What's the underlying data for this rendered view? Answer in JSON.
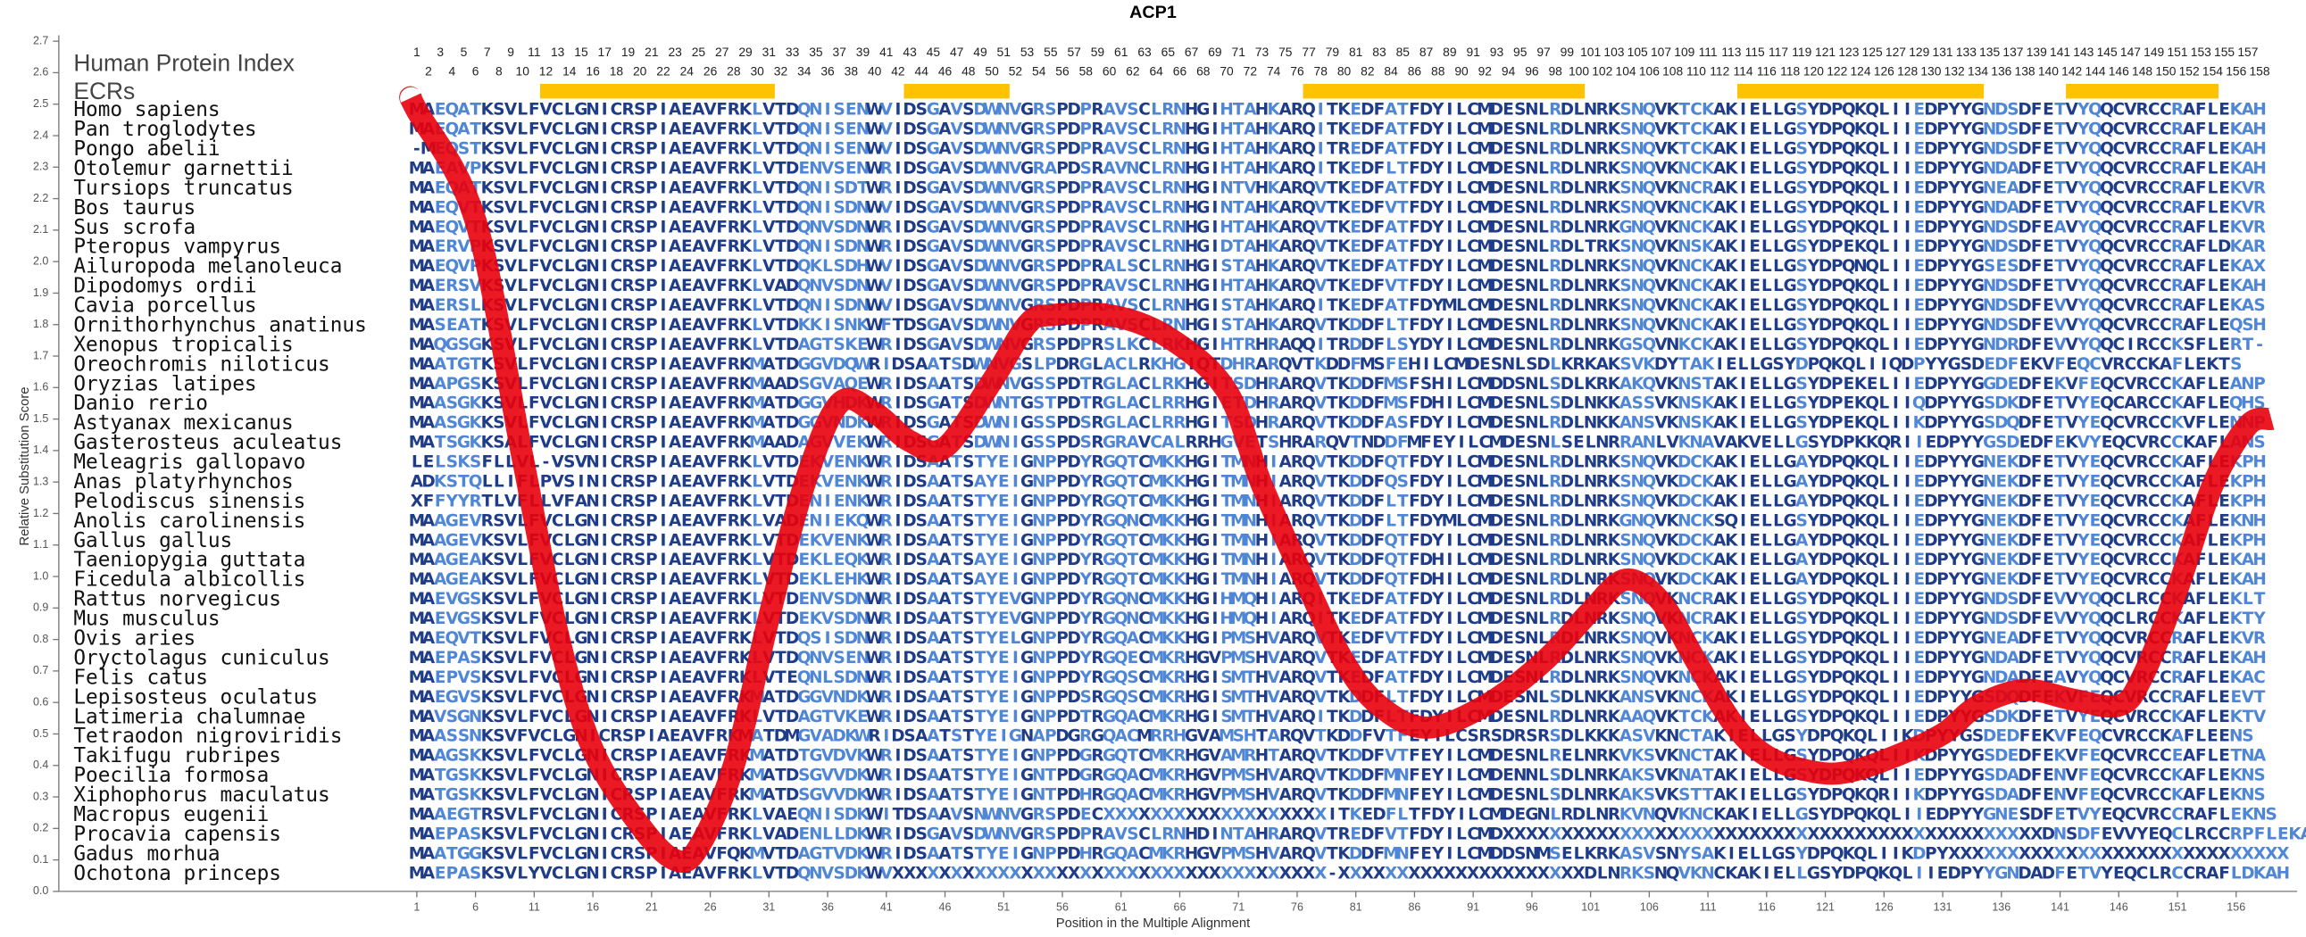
{
  "chart_data": {
    "type": "line",
    "title": "ACP1",
    "y_label": "Relative Substitution Score",
    "x_label": "Position in the Multiple Alignment",
    "index_label": "Human Protein Index",
    "ecr_label": "ECRs",
    "ecr_color": "#fdc300",
    "ecrs": [
      {
        "start": 12,
        "end": 31
      },
      {
        "start": 43,
        "end": 51
      },
      {
        "start": 77,
        "end": 100
      },
      {
        "start": 114,
        "end": 134
      },
      {
        "start": 142,
        "end": 154
      }
    ],
    "top_positions": [
      1,
      2,
      3,
      4,
      5,
      6,
      7,
      8,
      9,
      10,
      11,
      12,
      13,
      14,
      15,
      16,
      17,
      18,
      19,
      20,
      21,
      22,
      23,
      24,
      25,
      26,
      27,
      28,
      29,
      30,
      31,
      32,
      33,
      34,
      35,
      36,
      37,
      38,
      39,
      40,
      41,
      42,
      43,
      44,
      45,
      46,
      47,
      48,
      49,
      50,
      51,
      52,
      53,
      54,
      55,
      56,
      57,
      58,
      59,
      60,
      61,
      62,
      63,
      64,
      65,
      66,
      67,
      68,
      69,
      70,
      71,
      72,
      73,
      74,
      75,
      76,
      77,
      78,
      79,
      80,
      81,
      82,
      83,
      84,
      85,
      86,
      87,
      88,
      89,
      90,
      91,
      92,
      93,
      94,
      95,
      96,
      97,
      98,
      99,
      100,
      101,
      102,
      103,
      104,
      105,
      106,
      107,
      108,
      109,
      110,
      111,
      112,
      113,
      114,
      115,
      116,
      117,
      118,
      119,
      120,
      121,
      122,
      123,
      124,
      125,
      126,
      127,
      128,
      129,
      130,
      131,
      132,
      133,
      134,
      135,
      136,
      137,
      138,
      139,
      140,
      141,
      142,
      143,
      144,
      145,
      146,
      147,
      148,
      149,
      150,
      151,
      152,
      153,
      154,
      155,
      156,
      157,
      158
    ],
    "species": [
      "Homo sapiens",
      "Pan troglodytes",
      "Pongo abelii",
      "Otolemur garnettii",
      "Tursiops truncatus",
      "Bos taurus",
      "Sus scrofa",
      "Pteropus vampyrus",
      "Ailuropoda melanoleuca",
      "Dipodomys ordii",
      "Cavia porcellus",
      "Ornithorhynchus anatinus",
      "Xenopus tropicalis",
      "Oreochromis niloticus",
      "Oryzias latipes",
      "Danio rerio",
      "Astyanax mexicanus",
      "Gasterosteus aculeatus",
      "Meleagris gallopavo",
      "Anas platyrhynchos",
      "Pelodiscus sinensis",
      "Anolis carolinensis",
      "Gallus gallus",
      "Taeniopygia guttata",
      "Ficedula albicollis",
      "Rattus norvegicus",
      "Mus musculus",
      "Ovis aries",
      "Oryctolagus cuniculus",
      "Felis catus",
      "Lepisosteus oculatus",
      "Latimeria chalumnae",
      "Tetraodon nigroviridis",
      "Takifugu rubripes",
      "Poecilia formosa",
      "Xiphophorus maculatus",
      "Macropus eugenii",
      "Procavia capensis",
      "Gadus morhua",
      "Ochotona princeps"
    ],
    "sequences": [
      "MAEQATKSVLFVCLGNICRSPIAEAVFRKLVTDQNISENWVIDSGAVSDWNVGRSPDPRAVSCLRNHGIHTAHKARQITKEDFATFDYILCMDESNLRDLNRKSNQVKTCKAKIELLGSYDPQKQLIIEDPYYGNDSDFETVYQQCVRCCRAFLEKAH",
      "MAEQATKSVLFVCLGNICRSPIAEAVFRKLVTDQNISENWVIDSGAVSDWNVGRSPDPRAVSCLRNHGIHTAHKARQITKEDFATFDYILCMDESNLRDLNRKSNQVKTCKAKIELLGSYDPQKQLIIEDPYYGNDSDFETVYQQCVRCCRAFLEKAH",
      "-MEQSTKSVLFVCLGNICRSPIAEAVFRKLVTDQNISENWVIDSGAVSDWNVGRSPDPRAVSCLRNHGIHTAHKARQITREDFATFDYILCMDESNLRDLNRKSNQVKTCKAKIELLGSYDPQKQLIIEDPYYGNDSDFETVYQQCVRCCRAFLEKAH",
      "MAEAVPKSVLFVCLGNICRSPIAEAVFRKLVTDENVSENWRIDSGAVSDWNVGRAPDSRAVNCLRNHGIHTAHKARQITKEDFLTFDYILCMDESNLRDLNRKSNQVKNCKAKIELLGSYDPQKQLIIEDPYYGNDADFETVYQQCVRCCRAFLEKAH",
      "MAEQATKSVLFVCLGNICRSPIAEAVFRKLVTDQNISDTWRIDSGAVSDWNVGRSPDPRAVSCLRNHGINTVHKARQVTKEDFATFDYILCMDESNLRDLNRKSNQVKNCRAKIELLGSYDPQKQLIIEDPYYGNEADFETVYQQCVRCCRAFLEKVR",
      "MAEQVTKSVLFVCLGNICRSPIAEAVFRKLVTDQNISDNWVIDSGAVSDWNVGRSPDPRAVSCLRNHGINTAHKARQVTKEDFVTFDYILCMDESNLRDLNRKSNQVKNCKAKIELLGSYDPQKQLIIEDPYYGNDADFETVYQQCVRCCRAFLEKVR",
      "MAEQVTKSVLFVCLGNICRSPIAEAVFRKLVTDQNVSDNWRIDSGAVSDWNVGRSPDPRAVSCLRNHGIHTAHKARQVTKEDFATFDYILCMDESNLRDLNRKGNQVKNCKAKIELLGSYDPQKQLIIEDPYYGNDSDFEAVYQQCVRCCRAFLEKVR",
      "MAERVPKSVLFVCLGNICRSPIAEAVFRKLVTDQNISDNWRIDSGAVSDWNVGRSPDPRAVSCLRNHGIDTAHKARQVTKEDFATFDYILCMDESNLRDLTRKSNQVKNSKAKIELLGSYDPEKQLIIEDPYYGNDSDFETVYQQCVRCCRAFLDKAR",
      "MAEQVPKSVLFVCLGNICRSPIAEAVFRKLVTDQKLSDHWVIDSGAVSDWNVGRSPDPRALSCLRNHGISTAHKARQVTKEDFATFDYILCMDESNLRDLNRKSNQVKNCKAKIELLGSYDPQNQLIIEDPYYGSESDFETVYQQCVRCCRAFLEKAX",
      "MAERSVKSVLFVCLGNICRSPIAEAVFRKLVADQNVSDNWVIDSGAVSDWNVGRSPDPRAVSCLRNHGIHTAHKARQVTKEDFVTFDYILCMDESNLRDLNRKSNQVKNCKAKIELLGSYDPQKQLIIEDPYYGNDSDFETVYQQCVRCCRAFLEKAH",
      "MAERSLKSVLFVCLGNICRSPIAEAVFRKLVTDQNISDNWVIDSGAVSDWNVGRSPDPRAVSCLRNHGISTAHKARQITKEDFATFDYMLCMDESNLRDLNRKSNQVKNCKAKIELLGSYDPQKQLIIEDPYYGNDSDFEVVYQQCVRCCRAFLEKAS",
      "MASEATKSVLFVCLGNICRSPIAEAVFRKLVTDKKISNKWFTDSGAVSDWNVGRSPDPRAVSCLRNHGISTAHKARQVTKDDFLTFDYILCMDESNLRDLNRKSNQVKNCKAKIELLGSYDPQKQLIIEDPYYGNDSDFEVVYQQCVRCCRAFLEQSH",
      "MAQGSGKSVLFVCLGNICRSPIAEAVFRKLVTDAGTSKEWRIDSGAVSDWNVGRSPDPRSLKCLRKHGIHTRHRAQQITRDDFLSYDYILCMDESNLRDLNRKGSQVNKCKAKIELLGSYDPQKQLIIEDPYYGNDRDFEVVYQQCIRCCKSFLERT-",
      "MAATGTKSVLFVCLGNICRSPIAEAVFRKMATDGGVDQWRIDSAATSDWNVGSLPDRGLACLRKHGIQTDHRARQVTKDDFMSFEHILCMDESNLSDLKRKAKSVKDYTAKIELLGSYDPQKQLIIQDPYYGSDEDFEKVFEQCVRCCKAFLEKTS",
      "MAAPGSKSVLFVCLGNICRSPIAEAVFRKMAADSGVAQEWRIDSAATSDWNVGSSPDTRGLACLRKHGITSDHRARQVTKDDFMSFSHILCMDDSNLSDLKRKAKQVKNSTAKIELLGSYDPEKELIIEDPYYGGDEDFEKVFEQCVRCCKAFLEANP",
      "MAASGKKSVLFVCLGNICRSPIAEAVFRKMATDGGVHDKWRIDSGATSDWNTGSTPDTRGLACLRRHGIETDHRARQVTKDDFMSFDHILCMDESNLSDLNKKASSVKNSKAKIELLGSYDPEKQLIIQDPYYGSDKDFETVYEQCARCCKAFLEQHS",
      "MAASGKKSVLFVCLGNICRSPIAEAVFRKMATDGGVNDKWRIDSGATSDWNIGSSPDSRGLACLRRHGITSDHRARQVTKDDFASFDYILCMDESNLRDLNKKANSVKNSKAKIELLGSYDPEKQLIIKDPYYGSDQDFETVYEQCVRCCKVFLENNP",
      "MATSGKKSALFVCLGNICRSPIAEAVFRKMAADAGVVEKWRIDSGATSDWNIGSSPDSRGRAVCALRRHGVETSHRARQVTNDDFMFEYILCMDESNLSELNRRANLVKNAVAKVELLGSYDPKKQRIIEDPYYGSDEDFEKVYEQCVRCCKAFLANS",
      "LELSKSFLLVL-VSVNICRSPIAEAVFRKLVTDEKVENKWRIDSAATSTYEIGNPPDYRGQTCMKKHGITMNHIARQVTKDDFQTFDYILCMDESNLRDLNRKSNQVKDCKAKIELLGAYDPQKQLIIEDPYYGNEKDFETVYEQCVRCCKAFLEKPH",
      "ADKSTQLLIFLPVSINICRSPIAEAVFRKLVTDEKVENKWRIDSAATSAYEIGNPPDYRGQTCMKKHGITMNHIARQVTKDDFQSFDYILCMDESNLRDLNRKSNQVKDCKAKIELLGAYDPQKQLIIEDPYYGNEKDFETVYEQCVRCCKAFLEKPH",
      "XFFYYRTLVFLLVFANICRSPIAEAVFRKLVTDENIENKWRIDSAATSTYEIGNPPDYRGQTCMKKHGITMNHIARQVTKDDFLTFDYILCMDESNLRDLNRKSNQVKDCKAKIELLGAYDPQKQLIIEDPYYGNEKDFETVYEQCVRCCKAFLEKPH",
      "MAAGEVRSVLFVCLGNICRSPIAEAVFRKLVADENIEKQWRIDSAATSTYEIGNPPDYRGQNCMKKHGITMNHIARQVTKDDFLTFDYMLCMDESNLRDLNRKGNQVKNCKSQIELLGSYDPQKQLIIEDPYYGNEKDFETVYEQCVRCCKAFLEKNH",
      "MAAGEVKSVLFVCLGNICRSPIAEAVFRKLVTDEKVENKWRIDSAATSTYEIGNPPDYRGQTCMKKHGITMNHIARQVTKDDFQTFDYILCMDESNLRDLNRKSNQVKDCKAKIELLGAYDPQKQLIIEDPYYGNEKDFETVYEQCVRCCKAFLEKPH",
      "MAAGEAKSVLFVCLGNICRSPIAEAVFRKLVTDEKLEQKWRIDSAATSAYEIGNPPDYRGQTCMKKHGITMNHIARQVTKDDFQTFDHILCMDESNLRDLNRKSNQVKDCKAKIELLGAYDPQKQLIIEDPYYGNEKDFETVYEQCVRCCKAFLEKAH",
      "MAAGEAKSVLFVCLGNICRSPIAEAVFRKLVTDEKLEHKWRIDSAATSAYEIGNPPDYRGQTCMKKHGITMNHIARQVTKDDFQTFDHILCMDESNLRDLNRKSNQVKDCKAKIELLGAYDPQKQLIIEDPYYGNEKDFETVYEQCVRCCKAFLEKAH",
      "MAEVGSKSVLFVCLGNICRSPIAEAVFRKLVTDENVSDNWRIDSAATSTYEVGNPPDYRGQNCMKKHGIHMQHIARQITKEDFATFDYILCMDESNLRDLNRKSNQVKNCRAKIELLGSYDPQKQLIIEDPYYGNDSDFEVVYQQCLRCCKAFLEKLT",
      "MAEVGSKSVLFVCLGNICRSPIAEAVFRKLVTDEKVSDNWRIDSAATSTYEVGNPPDYRGQNCMKKHGIHMQHIARQITKEDFATFDYILCMDESNLRDLNRKSNQVKNCRAKIELLGSYDPQKQLIIEDPYYGNDSDFEVVYQQCLRCCKAFLEKTY",
      "MAEQVTKSVLFVCLGNICRSPIAEAVFRKLVTDQSISDNWRIDSAATSTYELGNPPDYRGQACMKKHGIPMSHVARQVTKEDFVTFDYILCMDESNLRDLNRKSNQVKNCKAKIELLGSYDPQKQLIIEDPYYGNEADFETVYQQCVRCCRAFLEKVR",
      "MAEPASKSVLFVCLGNICRSPIAEAVFRKLVTDQNVSENWRIDSAATSTYEIGNPPDYRGQECMKRHGVPMSHVARQVTKEDFATFDYILCMDESNLRDLNRKSNQVKNCKAKIELLGSYDPQKQLIIEDPYYGNDADFETVYQQCVRCCRAFLEKAH",
      "MAEPVSKSVLFVCLGNICRSPIAEAVFRKLVTEQNLSDNWRIDSAATSTYEIGNPPDYRGQSCMKRHGISMTHVARQVTKEDFATFDYILCMDESNLRDLNRKSNQVKNCKAKIELLGSYDPQKQLIIEDPYYGNDADFEAVYQQCVRCCRAFLEKAC",
      "MAEGVSKSVLFVCLGNICRSPIAEAVFRKMATDGGVNDKWRIDSAATSTYEIGNPPDSRGQSCMKRHGISMTHVARQVTKDDFLTFDYILCMDESNLSDLNKKANSVKNCKAKIELLGSYDPQKQLIIEDPYYGSDQDFEKVFEQCVRCCRAFLEEVT",
      "MAVSGNKSVLFVCLGNICRSPIAEAVFRKLVTDAGTVKEWRIDSAATSTYEIGNPPDTRGQACMKRHGISMTHVARQITKDDFLTFDYILCMDESNLRDLNRKAAQVKTCKAKIELLGSYDPQKQLIIEDPYYGSDKDFETVYEQCVRCCKAFLEKTV",
      "MAASSNKSVFVCLGNICRSPIAEAVFRKMATDMGVADKWRIDSAATSTYEIGNAPDGRGQACMRRHGVAMSHTARQVTKDDFVTFEYILCSRSDRSRSDLKKKASVKNCTAKIELLGSYDPQKQLIIKDPYYGSDEDFEKVFEQCVRCCKAFLEENS",
      "MAAGSKKSVLFVCLGNICRSPIAEAVFRKMATDTGVDVKWRIDSAATSTYEIGNPPDGRGQTCMKRHGVAMRHTARQVTKDDFVTFEYILCMDESNLRELNRKVKSVKNCTAKIELLGSYDPQKQLIIKDPYYGSDEDFEKVFEQCVRCCEAFLETNA",
      "MATGSKKSVLFVCLGNICRSPIAEAVFRKMATDSGVVDKWRIDSAATSTYEIGNTPDGRGQACMKRHGVPMSHVARQVTKDDFMNFEYILCMDENNLSDLNRKAKSVKNATAKIELLGSYDPQKQLIIEDPYYGSDADFENVFEQCVRCCKAFLEKNS",
      "MATGSKKSVLFVCLGNICRSPIAEAVFRKMATDSGVVDKWRIDSAATSTYEIGNTPDHRGQACMKRHGVPMSHVARQVTKDDFMNFEYILCMDESNLSDLNRKAKSVKSTTAKIELLGSYDPQKQRIIKDPYYGSDADFENVFEQCVRCCKAFLEKNS",
      "MAAEGTRSVLFVCLGNICRSPIAEAVFRKLVAEQNISDKWITDSAAVSNWNVGRSPDECXXXXXXXXXXXXXXXXXXXITKEDFLTFDYILCMDEGNLRDLNRKVNQVKNCKAKIELLGSYDPQKQLIIEDPYYGNESDFETVYEQCVRCCRAFLEKNS",
      "MAEPASKSVLFVCLGNICRSPIAEAVFRKLVADENLLDKWRIDSGAVSDWNVGRSPDPRAVSCLRNHDINTAHRARQVTREDFVTFDYILCMDXXXXXXXXXXXXXXXXXXXXXXXXXXXXXXXXXXXXXXXXXXXXXXDNSDFEVVYEQCLRCCRPFLEKAP",
      "MAATGGKSVLFVCLGNICRSPIAEAVFQKMVTDAGTVDKWRIDSAATSTYEIGNPPDHRGQACMKRHGVPMSHVARQVTKDDFMNFEYILCMDDSNMSELKRKASVSNYSAKIELLGSYDPQKQLIIKDPYXXXXXXXXXXXXXXXXXXXXXXXXXXXXX",
      "MAEPASKSVLYVCLGNICRSPIAEAVFRKLVTDQNVSDKWVXXXXXXXXXXXXXXXXXXXXXXXXXXXXXXXXXXXXX-XXXXXXXXXXXXXXXXXXXXXDLNRKSNQVKNCKAKIELLGSYDPQKQLIIEDPYYGNDADFETVYEQCLRCCRAFLDKAH"
    ],
    "x": [
      0.5,
      1,
      6,
      10,
      13,
      16,
      20,
      23,
      25,
      28,
      31,
      34,
      37,
      40,
      43,
      46,
      50,
      53,
      55,
      60,
      65,
      70,
      73,
      77,
      80,
      83,
      87,
      92,
      97,
      101,
      104,
      107,
      110,
      113,
      116,
      120,
      123,
      127,
      131,
      134,
      138,
      142,
      146,
      148,
      151,
      154,
      157,
      159
    ],
    "series": [
      {
        "color": "#e8000b",
        "values": [
          2.52,
          2.48,
          2.13,
          1.38,
          0.82,
          0.45,
          0.21,
          0.1,
          0.14,
          0.4,
          0.87,
          1.29,
          1.55,
          1.52,
          1.43,
          1.41,
          1.62,
          1.8,
          1.83,
          1.83,
          1.76,
          1.59,
          1.29,
          0.96,
          0.73,
          0.59,
          0.52,
          0.59,
          0.73,
          0.89,
          0.99,
          0.92,
          0.73,
          0.54,
          0.43,
          0.38,
          0.38,
          0.43,
          0.5,
          0.59,
          0.64,
          0.61,
          0.59,
          0.68,
          0.96,
          1.29,
          1.48,
          1.5
        ]
      }
    ],
    "xlim": [
      -29.5,
      161.2
    ],
    "xticks": [
      1,
      6,
      11,
      16,
      21,
      26,
      31,
      36,
      41,
      46,
      51,
      56,
      61,
      66,
      71,
      76,
      81,
      86,
      91,
      96,
      101,
      106,
      111,
      116,
      121,
      126,
      131,
      136,
      141,
      146,
      151,
      156
    ],
    "ylim": [
      0,
      2.7
    ],
    "yticks": [
      {
        "value": 0,
        "label": "0.0"
      },
      0.1,
      0.2,
      0.3,
      0.4,
      0.5,
      0.6,
      0.7,
      0.8,
      0.9,
      {
        "value": 1,
        "label": "1.0"
      },
      1.1,
      1.2,
      1.3,
      1.4,
      1.5,
      1.6,
      1.7,
      1.8,
      1.9,
      {
        "value": 2,
        "label": "2.0"
      },
      2.1,
      2.2,
      2.3,
      2.4,
      2.5,
      2.6,
      2.7
    ]
  }
}
